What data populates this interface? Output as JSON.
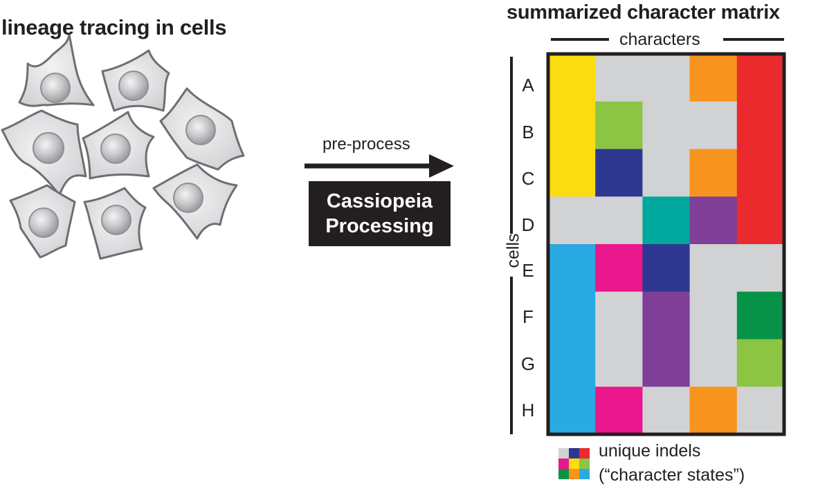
{
  "left_panel": {
    "title": "lineage tracing in cells"
  },
  "middle": {
    "arrow_label": "pre-process",
    "box_line1": "Cassiopeia",
    "box_line2": "Processing"
  },
  "right_panel": {
    "title": "summarized character matrix",
    "columns_label": "characters",
    "rows_label": "cells",
    "row_labels": [
      "A",
      "B",
      "C",
      "D",
      "E",
      "F",
      "G",
      "H"
    ],
    "colors": {
      "gray": "#d1d2d4",
      "yellow": "#fbdc0e",
      "orange": "#f7941d",
      "red": "#ea2a2d",
      "lightgreen": "#8cc443",
      "navy": "#2e3790",
      "teal": "#00a79d",
      "purple": "#7f3f98",
      "cyan": "#29aae2",
      "magenta": "#e9168c",
      "green": "#079347"
    },
    "matrix": [
      [
        "yellow",
        "gray",
        "gray",
        "orange",
        "red"
      ],
      [
        "yellow",
        "lightgreen",
        "gray",
        "gray",
        "red"
      ],
      [
        "yellow",
        "navy",
        "gray",
        "orange",
        "red"
      ],
      [
        "gray",
        "gray",
        "teal",
        "purple",
        "red"
      ],
      [
        "cyan",
        "magenta",
        "navy",
        "gray",
        "gray"
      ],
      [
        "cyan",
        "gray",
        "purple",
        "gray",
        "green"
      ],
      [
        "cyan",
        "gray",
        "purple",
        "gray",
        "lightgreen"
      ],
      [
        "cyan",
        "magenta",
        "gray",
        "orange",
        "gray"
      ]
    ]
  },
  "legend": {
    "line1": "unique indels",
    "line2": "(“character states”)",
    "swatches": [
      "gray",
      "navy",
      "red",
      "magenta",
      "yellow",
      "lightgreen",
      "green",
      "orange",
      "cyan"
    ]
  }
}
